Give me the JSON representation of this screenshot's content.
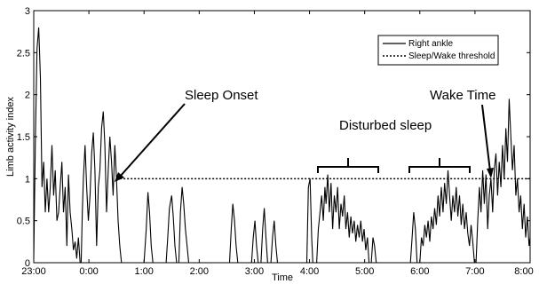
{
  "chart_data": {
    "type": "line",
    "xlabel": "Time",
    "ylabel": "Limb activity index",
    "xlim": [
      0,
      9
    ],
    "ylim": [
      0,
      3
    ],
    "x_ticks": [
      {
        "value": 0,
        "label": "23:00"
      },
      {
        "value": 1,
        "label": "0:00"
      },
      {
        "value": 2,
        "label": "1:00"
      },
      {
        "value": 3,
        "label": "2:00"
      },
      {
        "value": 4,
        "label": "3:00"
      },
      {
        "value": 5,
        "label": "4:00"
      },
      {
        "value": 6,
        "label": "5:00"
      },
      {
        "value": 7,
        "label": "6:00"
      },
      {
        "value": 8,
        "label": "7:00"
      },
      {
        "value": 9,
        "label": "8:00"
      }
    ],
    "y_ticks": [
      {
        "value": 0,
        "label": "0"
      },
      {
        "value": 0.5,
        "label": "0.5"
      },
      {
        "value": 1,
        "label": "1"
      },
      {
        "value": 1.5,
        "label": "1.5"
      },
      {
        "value": 2,
        "label": "2"
      },
      {
        "value": 2.5,
        "label": "2.5"
      },
      {
        "value": 3,
        "label": "3"
      }
    ],
    "legend_position": "top-right",
    "grid": false,
    "series": [
      {
        "name": "Right ankle",
        "style": "solid",
        "color": "#000000",
        "points": [
          [
            0.0,
            0.05
          ],
          [
            0.03,
            1.5
          ],
          [
            0.06,
            2.55
          ],
          [
            0.09,
            2.8
          ],
          [
            0.12,
            2.2
          ],
          [
            0.15,
            0.9
          ],
          [
            0.18,
            1.2
          ],
          [
            0.21,
            0.6
          ],
          [
            0.24,
            1.0
          ],
          [
            0.27,
            0.6
          ],
          [
            0.3,
            0.9
          ],
          [
            0.33,
            1.4
          ],
          [
            0.36,
            0.8
          ],
          [
            0.39,
            1.1
          ],
          [
            0.42,
            0.5
          ],
          [
            0.45,
            0.6
          ],
          [
            0.48,
            0.9
          ],
          [
            0.51,
            1.2
          ],
          [
            0.54,
            0.6
          ],
          [
            0.57,
            0.9
          ],
          [
            0.6,
            0.2
          ],
          [
            0.63,
            1.05
          ],
          [
            0.66,
            0.6
          ],
          [
            0.69,
            0.4
          ],
          [
            0.72,
            0.15
          ],
          [
            0.75,
            0.25
          ],
          [
            0.78,
            0.05
          ],
          [
            0.81,
            0.3
          ],
          [
            0.84,
            0.0
          ],
          [
            0.86,
            0.0
          ],
          [
            0.88,
            0.6
          ],
          [
            0.9,
            1.0
          ],
          [
            0.93,
            1.4
          ],
          [
            0.96,
            0.9
          ],
          [
            0.99,
            0.5
          ],
          [
            1.02,
            0.8
          ],
          [
            1.05,
            1.3
          ],
          [
            1.08,
            1.55
          ],
          [
            1.11,
            1.1
          ],
          [
            1.14,
            0.2
          ],
          [
            1.17,
            0.9
          ],
          [
            1.2,
            1.1
          ],
          [
            1.23,
            1.6
          ],
          [
            1.26,
            1.8
          ],
          [
            1.29,
            1.4
          ],
          [
            1.32,
            0.6
          ],
          [
            1.35,
            1.1
          ],
          [
            1.38,
            1.5
          ],
          [
            1.41,
            1.2
          ],
          [
            1.44,
            0.8
          ],
          [
            1.47,
            1.4
          ],
          [
            1.5,
            1.0
          ],
          [
            1.53,
            0.5
          ],
          [
            1.56,
            0.2
          ],
          [
            1.59,
            0.0
          ],
          [
            1.62,
            0.0
          ],
          [
            2.0,
            0.0
          ],
          [
            2.04,
            0.4
          ],
          [
            2.07,
            0.84
          ],
          [
            2.1,
            0.6
          ],
          [
            2.13,
            0.2
          ],
          [
            2.16,
            0.0
          ],
          [
            2.4,
            0.0
          ],
          [
            2.43,
            0.3
          ],
          [
            2.46,
            0.65
          ],
          [
            2.5,
            0.8
          ],
          [
            2.53,
            0.55
          ],
          [
            2.56,
            0.2
          ],
          [
            2.59,
            0.0
          ],
          [
            2.63,
            0.0
          ],
          [
            2.66,
            0.6
          ],
          [
            2.69,
            0.9
          ],
          [
            2.72,
            0.7
          ],
          [
            2.75,
            0.4
          ],
          [
            2.78,
            0.2
          ],
          [
            2.81,
            0.0
          ],
          [
            3.55,
            0.0
          ],
          [
            3.58,
            0.4
          ],
          [
            3.61,
            0.7
          ],
          [
            3.64,
            0.5
          ],
          [
            3.67,
            0.2
          ],
          [
            3.7,
            0.0
          ],
          [
            3.95,
            0.0
          ],
          [
            3.98,
            0.3
          ],
          [
            4.01,
            0.5
          ],
          [
            4.04,
            0.2
          ],
          [
            4.07,
            0.0
          ],
          [
            4.12,
            0.0
          ],
          [
            4.15,
            0.4
          ],
          [
            4.18,
            0.65
          ],
          [
            4.21,
            0.3
          ],
          [
            4.24,
            0.0
          ],
          [
            4.3,
            0.0
          ],
          [
            4.33,
            0.3
          ],
          [
            4.36,
            0.5
          ],
          [
            4.39,
            0.2
          ],
          [
            4.42,
            0.0
          ],
          [
            4.95,
            0.0
          ],
          [
            4.98,
            0.9
          ],
          [
            5.01,
            1.0
          ],
          [
            5.04,
            0.3
          ],
          [
            5.06,
            0.0
          ],
          [
            5.13,
            0.0
          ],
          [
            5.16,
            0.4
          ],
          [
            5.19,
            0.6
          ],
          [
            5.22,
            0.8
          ],
          [
            5.25,
            0.5
          ],
          [
            5.28,
            0.9
          ],
          [
            5.3,
            0.7
          ],
          [
            5.33,
            1.05
          ],
          [
            5.36,
            0.6
          ],
          [
            5.39,
            0.95
          ],
          [
            5.42,
            0.4
          ],
          [
            5.45,
            0.8
          ],
          [
            5.48,
            0.6
          ],
          [
            5.51,
            0.9
          ],
          [
            5.54,
            0.4
          ],
          [
            5.57,
            0.7
          ],
          [
            5.6,
            0.55
          ],
          [
            5.63,
            0.8
          ],
          [
            5.66,
            0.4
          ],
          [
            5.69,
            0.6
          ],
          [
            5.72,
            0.3
          ],
          [
            5.75,
            0.55
          ],
          [
            5.78,
            0.35
          ],
          [
            5.81,
            0.5
          ],
          [
            5.84,
            0.25
          ],
          [
            5.87,
            0.45
          ],
          [
            5.9,
            0.3
          ],
          [
            5.93,
            0.5
          ],
          [
            5.96,
            0.25
          ],
          [
            5.99,
            0.4
          ],
          [
            6.02,
            0.15
          ],
          [
            6.05,
            0.3
          ],
          [
            6.08,
            0.0
          ],
          [
            6.12,
            0.0
          ],
          [
            6.15,
            0.3
          ],
          [
            6.18,
            0.2
          ],
          [
            6.21,
            0.0
          ],
          [
            6.83,
            0.0
          ],
          [
            6.86,
            0.3
          ],
          [
            6.89,
            0.6
          ],
          [
            6.92,
            0.4
          ],
          [
            6.95,
            0.0
          ],
          [
            7.0,
            0.0
          ],
          [
            7.03,
            0.3
          ],
          [
            7.06,
            0.2
          ],
          [
            7.09,
            0.45
          ],
          [
            7.12,
            0.3
          ],
          [
            7.15,
            0.5
          ],
          [
            7.18,
            0.25
          ],
          [
            7.21,
            0.55
          ],
          [
            7.24,
            0.4
          ],
          [
            7.27,
            0.65
          ],
          [
            7.3,
            0.45
          ],
          [
            7.33,
            0.8
          ],
          [
            7.36,
            0.55
          ],
          [
            7.39,
            0.9
          ],
          [
            7.42,
            0.6
          ],
          [
            7.45,
            0.95
          ],
          [
            7.48,
            0.7
          ],
          [
            7.51,
            1.1
          ],
          [
            7.54,
            0.8
          ],
          [
            7.57,
            0.5
          ],
          [
            7.6,
            0.8
          ],
          [
            7.63,
            0.6
          ],
          [
            7.66,
            0.9
          ],
          [
            7.69,
            0.55
          ],
          [
            7.72,
            0.8
          ],
          [
            7.75,
            0.45
          ],
          [
            7.78,
            0.7
          ],
          [
            7.81,
            0.4
          ],
          [
            7.84,
            0.6
          ],
          [
            7.87,
            0.35
          ],
          [
            7.9,
            0.2
          ],
          [
            7.93,
            0.45
          ],
          [
            7.96,
            0.25
          ],
          [
            7.99,
            0.0
          ],
          [
            8.02,
            0.0
          ],
          [
            8.05,
            0.5
          ],
          [
            8.08,
            0.9
          ],
          [
            8.11,
            0.6
          ],
          [
            8.14,
            1.1
          ],
          [
            8.17,
            0.7
          ],
          [
            8.2,
            1.05
          ],
          [
            8.23,
            0.4
          ],
          [
            8.26,
            0.8
          ],
          [
            8.29,
            1.0
          ],
          [
            8.32,
            0.6
          ],
          [
            8.35,
            1.1
          ],
          [
            8.38,
            1.3
          ],
          [
            8.41,
            0.8
          ],
          [
            8.44,
            1.2
          ],
          [
            8.47,
            0.9
          ],
          [
            8.5,
            1.4
          ],
          [
            8.53,
            1.0
          ],
          [
            8.56,
            1.6
          ],
          [
            8.59,
            1.2
          ],
          [
            8.62,
            1.95
          ],
          [
            8.65,
            1.5
          ],
          [
            8.68,
            1.1
          ],
          [
            8.71,
            1.4
          ],
          [
            8.74,
            0.8
          ],
          [
            8.77,
            1.0
          ],
          [
            8.8,
            0.6
          ],
          [
            8.83,
            0.8
          ],
          [
            8.86,
            0.4
          ],
          [
            8.89,
            0.7
          ],
          [
            8.92,
            0.3
          ],
          [
            8.95,
            0.55
          ],
          [
            8.98,
            0.2
          ],
          [
            9.0,
            0.3
          ]
        ]
      },
      {
        "name": "Sleep/Wake threshold",
        "style": "dotted",
        "color": "#000000",
        "points": [
          [
            1.5,
            1.0
          ],
          [
            9.0,
            1.0
          ]
        ]
      }
    ],
    "annotations": [
      {
        "text": "Sleep Onset"
      },
      {
        "text": "Disturbed sleep"
      },
      {
        "text": "Wake Time"
      }
    ]
  }
}
